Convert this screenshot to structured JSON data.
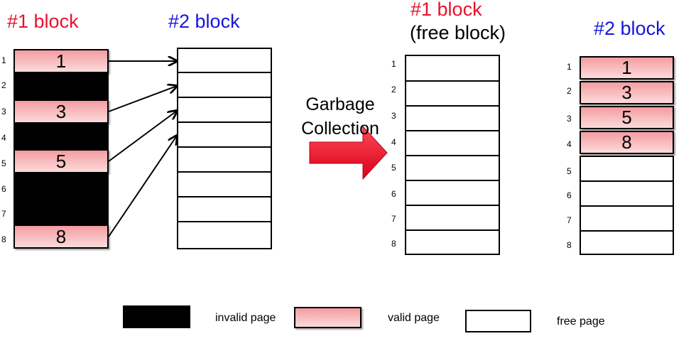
{
  "colors": {
    "red": "#e8112d",
    "blue": "#1515e0",
    "valid_fill": "#f7b3b5",
    "arrow": "#e8112d"
  },
  "left_block1": {
    "title": "#1 block",
    "rows": [
      "1",
      "2",
      "3",
      "4",
      "5",
      "6",
      "7",
      "8"
    ],
    "pages": [
      {
        "state": "valid",
        "label": "1"
      },
      {
        "state": "invalid",
        "label": ""
      },
      {
        "state": "valid",
        "label": "3"
      },
      {
        "state": "invalid",
        "label": ""
      },
      {
        "state": "valid",
        "label": "5"
      },
      {
        "state": "invalid",
        "label": ""
      },
      {
        "state": "invalid",
        "label": ""
      },
      {
        "state": "valid",
        "label": "8"
      }
    ]
  },
  "left_block2": {
    "title": "#2 block"
  },
  "gc_label": {
    "line1": "Garbage",
    "line2": "Collection"
  },
  "right_block1": {
    "title": "#1 block",
    "subtitle": "(free block)",
    "rows": [
      "1",
      "2",
      "3",
      "4",
      "5",
      "6",
      "7",
      "8"
    ]
  },
  "right_block2": {
    "title": "#2 block",
    "rows": [
      "1",
      "2",
      "3",
      "4",
      "5",
      "6",
      "7",
      "8"
    ],
    "pages": [
      {
        "state": "valid",
        "label": "1"
      },
      {
        "state": "valid",
        "label": "3"
      },
      {
        "state": "valid",
        "label": "5"
      },
      {
        "state": "valid",
        "label": "8"
      },
      {
        "state": "free",
        "label": ""
      },
      {
        "state": "free",
        "label": ""
      },
      {
        "state": "free",
        "label": ""
      },
      {
        "state": "free",
        "label": ""
      }
    ]
  },
  "legend": {
    "invalid": "invalid page",
    "valid": "valid  page",
    "free": "free  page"
  }
}
